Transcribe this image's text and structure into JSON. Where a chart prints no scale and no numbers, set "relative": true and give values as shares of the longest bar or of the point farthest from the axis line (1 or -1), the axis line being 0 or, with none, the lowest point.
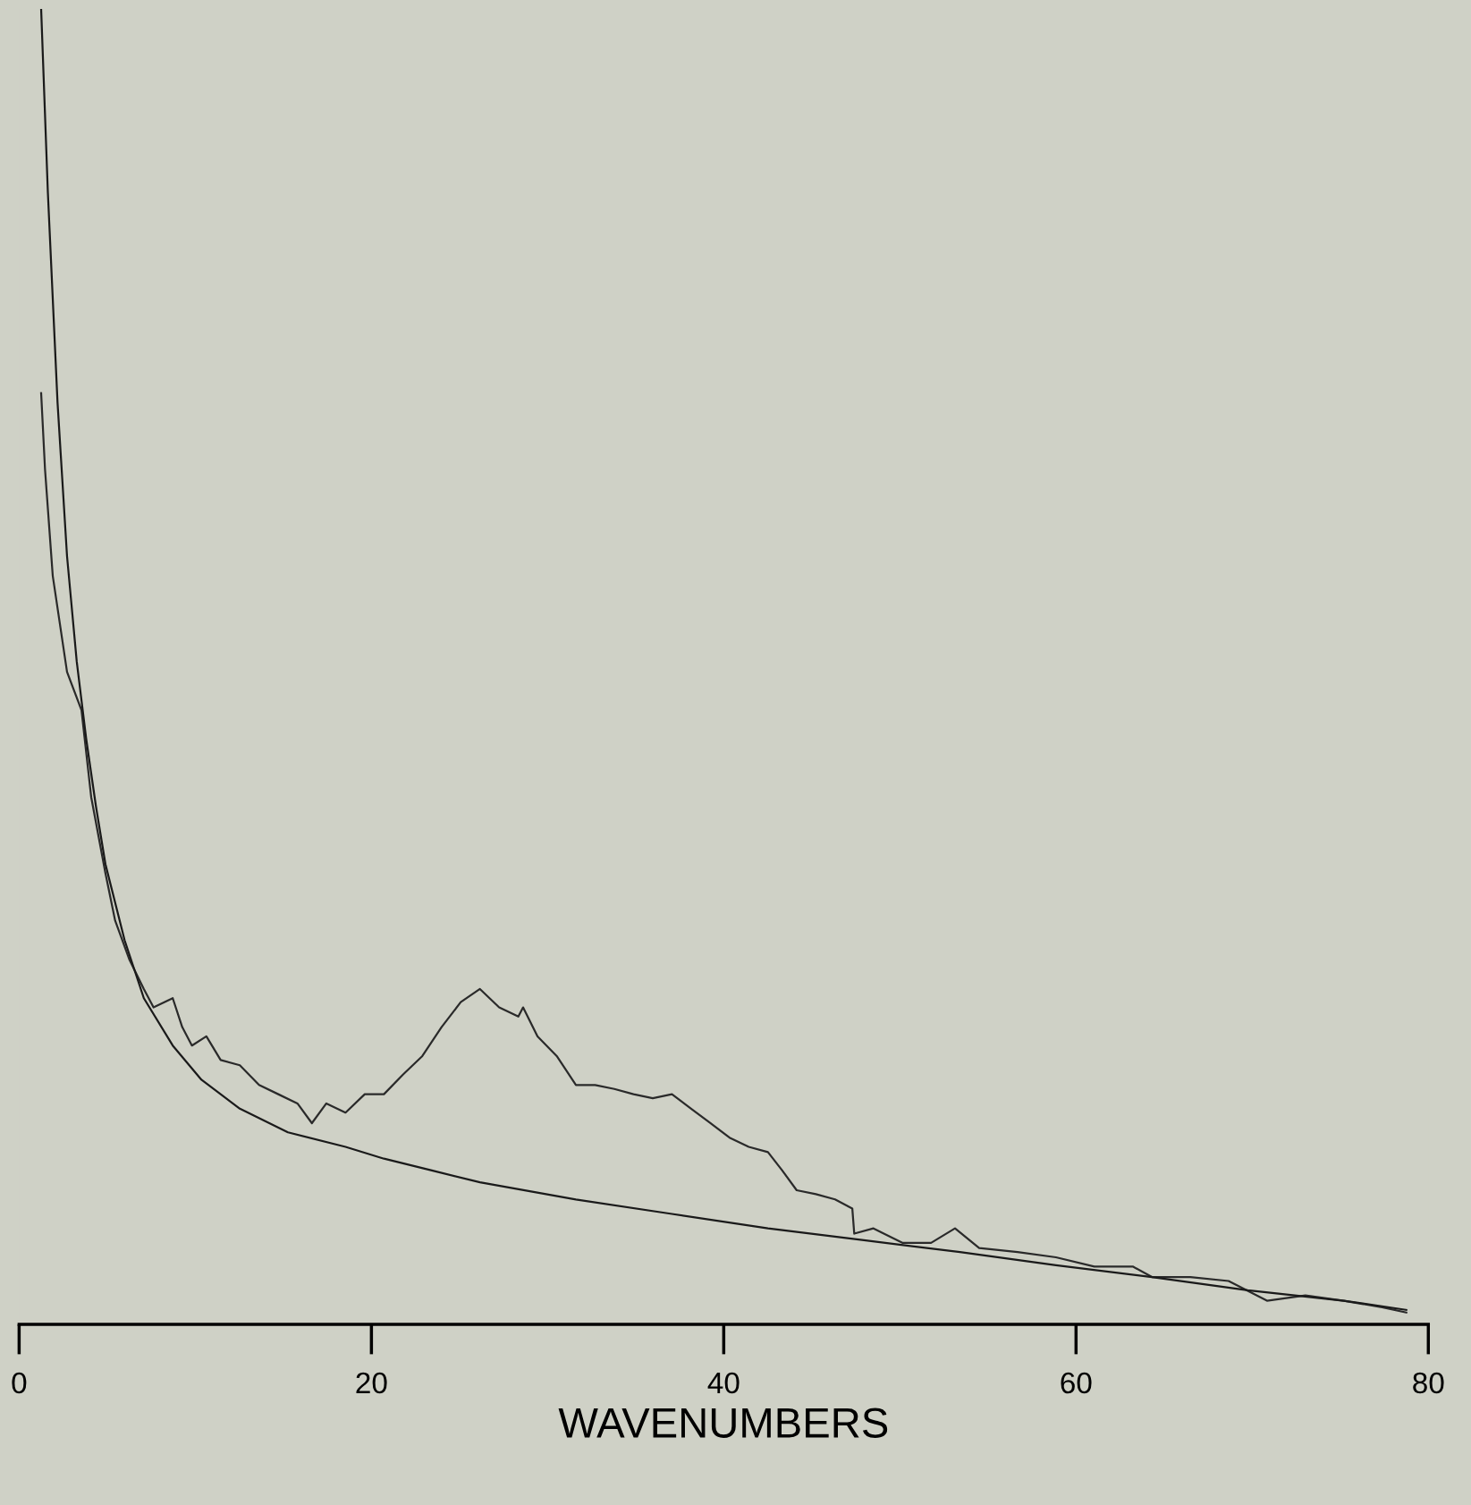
{
  "chart_data": {
    "type": "line",
    "xlabel": "WAVENUMBERS",
    "relative": true,
    "xlim": [
      0,
      80
    ],
    "xticks": [
      0,
      20,
      40,
      60,
      80
    ],
    "grid": false,
    "marker": "none",
    "line_style": "solid",
    "series": [
      {
        "color": "#2a2a2a",
        "x": [
          1.25,
          1.47,
          1.91,
          2.72,
          3.54,
          4.09,
          4.9,
          5.45,
          6.27,
          7.08,
          7.63,
          8.72,
          9.26,
          9.81,
          10.63,
          11.44,
          12.53,
          13.62,
          14.71,
          15.8,
          16.62,
          17.44,
          18.53,
          19.62,
          20.71,
          21.8,
          22.89,
          23.98,
          25.07,
          26.16,
          27.25,
          28.34,
          28.61,
          29.43,
          30.52,
          31.61,
          32.7,
          33.79,
          34.88,
          35.97,
          37.06,
          38.15,
          39.24,
          40.33,
          41.42,
          42.51,
          43.32,
          44.14,
          45.23,
          46.32,
          47.3,
          47.41,
          48.5,
          50.14,
          51.77,
          53.13,
          54.5,
          56.68,
          58.86,
          61.04,
          63.22,
          64.31,
          66.49,
          68.66,
          70.84,
          73.02,
          75.2,
          77.38,
          78.75
        ],
        "values": [
          0.708,
          0.65,
          0.569,
          0.496,
          0.467,
          0.401,
          0.343,
          0.307,
          0.277,
          0.255,
          0.241,
          0.248,
          0.226,
          0.212,
          0.219,
          0.201,
          0.197,
          0.182,
          0.175,
          0.168,
          0.153,
          0.168,
          0.161,
          0.175,
          0.175,
          0.19,
          0.204,
          0.226,
          0.245,
          0.255,
          0.241,
          0.234,
          0.241,
          0.219,
          0.204,
          0.182,
          0.182,
          0.179,
          0.175,
          0.172,
          0.175,
          0.164,
          0.153,
          0.142,
          0.135,
          0.131,
          0.117,
          0.102,
          0.099,
          0.095,
          0.088,
          0.069,
          0.073,
          0.062,
          0.062,
          0.073,
          0.058,
          0.055,
          0.051,
          0.044,
          0.044,
          0.036,
          0.036,
          0.033,
          0.018,
          0.022,
          0.018,
          0.013,
          0.009
        ]
      },
      {
        "color": "#1a1a1a",
        "x": [
          1.25,
          1.63,
          2.18,
          2.72,
          3.27,
          3.81,
          4.36,
          4.9,
          5.99,
          7.08,
          8.72,
          10.35,
          12.53,
          15.26,
          18.53,
          20.71,
          23.43,
          26.16,
          31.61,
          37.06,
          42.51,
          47.96,
          53.41,
          58.86,
          64.31,
          69.75,
          75.2,
          78.75
        ],
        "values": [
          1.0,
          0.861,
          0.701,
          0.584,
          0.504,
          0.445,
          0.394,
          0.35,
          0.292,
          0.248,
          0.212,
          0.186,
          0.164,
          0.146,
          0.135,
          0.126,
          0.117,
          0.108,
          0.095,
          0.084,
          0.073,
          0.064,
          0.055,
          0.045,
          0.036,
          0.026,
          0.018,
          0.011
        ]
      }
    ]
  }
}
